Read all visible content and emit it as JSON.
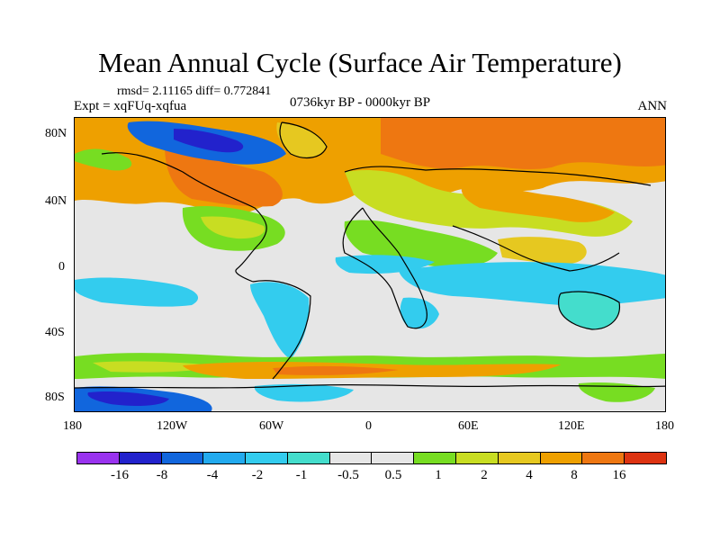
{
  "title": "Mean Annual Cycle (Surface Air Temperature)",
  "stats": "rmsd= 2.11165 diff= 0.772841",
  "experiment": "Expt = xqFUq-xqfua",
  "period": "0736kyr BP - 0000kyr BP",
  "season": "ANN",
  "lat_labels": [
    "80N",
    "40N",
    "0",
    "40S",
    "80S"
  ],
  "lon_labels": [
    "180",
    "120W",
    "60W",
    "0",
    "60E",
    "120E",
    "180"
  ],
  "colorbar": {
    "colors": [
      "#9933ee",
      "#2222cc",
      "#1166dd",
      "#22aaee",
      "#33ccee",
      "#44ddcc",
      "#e6e6e6",
      "#e6e6e6",
      "#77dd22",
      "#c8dd22",
      "#e6c820",
      "#eea000",
      "#ee7711",
      "#dd3311"
    ],
    "labels": [
      "-16",
      "-8",
      "-4",
      "-2",
      "-1",
      "-0.5",
      "0.5",
      "1",
      "2",
      "4",
      "8",
      "16"
    ]
  },
  "map_colors": {
    "neutral": "#e6e6e6",
    "light_green": "#77dd22",
    "yellow_green": "#c8dd22",
    "yellow": "#e6c820",
    "orange": "#eea000",
    "dark_orange": "#ee7711",
    "cyan": "#33ccee",
    "teal": "#44ddcc",
    "light_blue": "#22aaee",
    "blue": "#1166dd",
    "dark_blue": "#2222cc"
  }
}
